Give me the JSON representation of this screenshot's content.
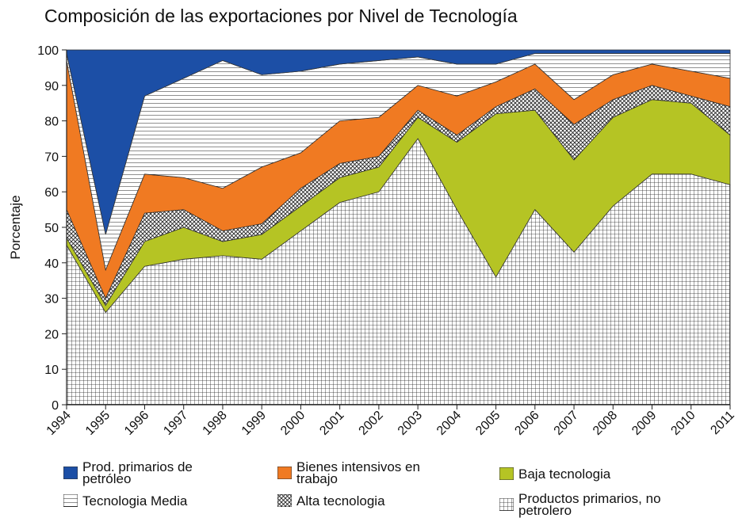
{
  "chart_data": {
    "type": "stacked_area",
    "title": "Composición de las exportaciones por Nivel de Tecnología",
    "y_label": "Porcentaje",
    "categories": [
      "1994",
      "1995",
      "1996",
      "1997",
      "1998",
      "1999",
      "2000",
      "2001",
      "2002",
      "2003",
      "2004",
      "2005",
      "2006",
      "2007",
      "2008",
      "2009",
      "2010",
      "2011"
    ],
    "series": [
      {
        "name": "Productos primarios, no petrolero",
        "color": "#000000",
        "pattern": "grid",
        "values": [
          45,
          26,
          39,
          41,
          42,
          41,
          49,
          57,
          60,
          75,
          55,
          36,
          55,
          43,
          56,
          65,
          65,
          62
        ]
      },
      {
        "name": "Baja tecnologia",
        "color": "#b5c424",
        "pattern": "solid",
        "values": [
          2,
          2,
          7,
          9,
          4,
          7,
          7,
          7,
          7,
          6,
          19,
          46,
          28,
          26,
          25,
          21,
          20,
          14
        ]
      },
      {
        "name": "Alta tecnologia",
        "color": "#000000",
        "pattern": "cross",
        "values": [
          8,
          2,
          8,
          5,
          3,
          3,
          5,
          4,
          3,
          2,
          2,
          2,
          6,
          10,
          5,
          4,
          2,
          8
        ]
      },
      {
        "name": "Bienes intensivos en trabajo",
        "color": "#f07a22",
        "pattern": "solid",
        "values": [
          42,
          8,
          11,
          9,
          12,
          16,
          10,
          12,
          11,
          7,
          11,
          7,
          7,
          7,
          7,
          6,
          7,
          8
        ]
      },
      {
        "name": "Tecnologia Media",
        "color": "#000000",
        "pattern": "hlines",
        "values": [
          2,
          10,
          22,
          28,
          36,
          26,
          23,
          16,
          16,
          8,
          9,
          5,
          3,
          13,
          6,
          3,
          5,
          7
        ]
      },
      {
        "name": "Prod. primarios de petróleo",
        "color": "#1c4fa6",
        "pattern": "solid",
        "values": [
          1,
          52,
          13,
          8,
          3,
          7,
          6,
          4,
          3,
          2,
          4,
          4,
          1,
          1,
          1,
          1,
          1,
          1
        ]
      }
    ],
    "ylim": [
      0,
      100
    ],
    "yticks": [
      0,
      10,
      20,
      30,
      40,
      50,
      60,
      70,
      80,
      90,
      100
    ]
  }
}
